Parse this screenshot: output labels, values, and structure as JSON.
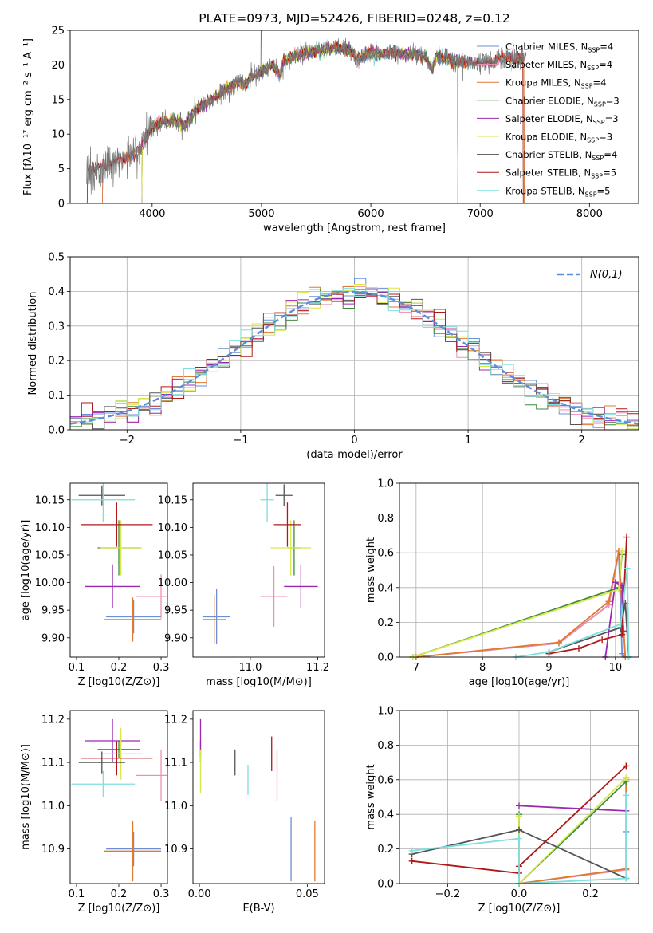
{
  "colors": {
    "Chabrier MILES": "#6a8fd8",
    "Salpeter MILES": "#ee8fb0",
    "Kroupa MILES": "#e07a30",
    "Chabrier ELODIE": "#3e8a3e",
    "Salpeter ELODIE": "#9c27b0",
    "Kroupa ELODIE": "#d6e84a",
    "Chabrier STELIB": "#555555",
    "Salpeter STELIB": "#b01818",
    "Kroupa STELIB": "#7fdede"
  },
  "chart_data": [
    {
      "id": "spectrum",
      "type": "line",
      "title": "PLATE=0973, MJD=52426, FIBERID=0248, z=0.12",
      "xlabel": "wavelength [Angstrom, rest frame]",
      "ylabel": "Flux [fλ10⁻¹⁷ erg cm⁻² s⁻¹ A⁻¹]",
      "xlim": [
        3250,
        8450
      ],
      "ylim": [
        0,
        25
      ],
      "xticks": [
        "4000",
        "5000",
        "6000",
        "7000",
        "8000"
      ],
      "yticks": [
        "0",
        "5",
        "10",
        "15",
        "20",
        "25"
      ],
      "legend_position": "right",
      "series": [
        {
          "name": "Chabrier MILES, N_SSP=4",
          "cut": [
            3540,
            7410
          ]
        },
        {
          "name": "Salpeter MILES, N_SSP=4",
          "cut": [
            3540,
            7410
          ]
        },
        {
          "name": "Kroupa MILES, N_SSP=4",
          "cut": [
            3540,
            7410
          ]
        },
        {
          "name": "Chabrier ELODIE, N_SSP=3",
          "cut": [
            3900,
            6800
          ]
        },
        {
          "name": "Salpeter ELODIE, N_SSP=3",
          "cut": [
            3900,
            6800
          ]
        },
        {
          "name": "Kroupa ELODIE, N_SSP=3",
          "cut": [
            3900,
            6800
          ]
        },
        {
          "name": "Chabrier STELIB, N_SSP=4",
          "cut": [
            3400,
            7400
          ]
        },
        {
          "name": "Salpeter STELIB, N_SSP=5",
          "cut": [
            3400,
            7400
          ]
        },
        {
          "name": "Kroupa STELIB, N_SSP=5",
          "cut": [
            3400,
            7400
          ]
        }
      ],
      "data_curve": {
        "x": [
          3400,
          3500,
          3600,
          3700,
          3800,
          3900,
          3950,
          4000,
          4100,
          4200,
          4300,
          4400,
          4500,
          4600,
          4700,
          4800,
          4860,
          4900,
          5000,
          5100,
          5170,
          5200,
          5300,
          5400,
          5500,
          5600,
          5700,
          5800,
          5890,
          6000,
          6100,
          6200,
          6300,
          6400,
          6500,
          6563,
          6600,
          6700,
          6800,
          6900,
          7000,
          7100,
          7200,
          7300,
          7400
        ],
        "y": [
          4.9,
          5.2,
          5.5,
          6.3,
          6.8,
          8.2,
          9.4,
          11.0,
          11.8,
          12.0,
          11.3,
          13.5,
          14.5,
          15.5,
          16.8,
          17.6,
          17.0,
          18.3,
          19.0,
          20.0,
          18.4,
          20.6,
          21.2,
          21.7,
          22.0,
          22.3,
          22.5,
          22.2,
          20.8,
          21.8,
          21.6,
          21.9,
          21.5,
          21.6,
          21.0,
          19.4,
          21.2,
          20.8,
          20.5,
          20.3,
          20.3,
          20.4,
          21.1,
          20.9,
          21.0
        ]
      }
    },
    {
      "id": "residuals",
      "type": "line",
      "xlabel": "(data-model)/error",
      "ylabel": "Normed distribution",
      "xlim": [
        -2.5,
        2.5
      ],
      "ylim": [
        0,
        0.5
      ],
      "xticks": [
        "−2",
        "−1",
        "0",
        "1",
        "2"
      ],
      "yticks": [
        "0.0",
        "0.1",
        "0.2",
        "0.3",
        "0.4",
        "0.5"
      ],
      "grid": true,
      "legend_position": "top-right",
      "reference": {
        "name": "N(0,1)",
        "type": "gaussian",
        "mean": 0,
        "sigma": 1
      },
      "histograms": {
        "bin_width": 0.1,
        "range": [
          -2.5,
          2.5
        ]
      }
    },
    {
      "id": "age_vs_Z",
      "type": "scatter",
      "xlabel": "Z [log10(Z/Z⊙)]",
      "ylabel": "age [log10(age/yr)]",
      "xlim": [
        0.085,
        0.315
      ],
      "ylim": [
        9.865,
        10.18
      ],
      "xticks": [
        "0.1",
        "0.2",
        "0.3"
      ],
      "yticks": [
        "9.90",
        "9.95",
        "10.00",
        "10.05",
        "10.10",
        "10.15"
      ],
      "points": [
        {
          "series": "Chabrier MILES",
          "x": 0.235,
          "y": 9.938,
          "xerr": 0.065,
          "yerr": 0.03
        },
        {
          "series": "Salpeter MILES",
          "x": 0.3,
          "y": 9.975,
          "xerr": 0.06,
          "yerr": 0.04
        },
        {
          "series": "Kroupa MILES",
          "x": 0.233,
          "y": 9.933,
          "xerr": 0.067,
          "yerr": 0.04
        },
        {
          "series": "Chabrier ELODIE",
          "x": 0.2,
          "y": 10.063,
          "xerr": 0.05,
          "yerr": 0.05
        },
        {
          "series": "Salpeter ELODIE",
          "x": 0.185,
          "y": 9.993,
          "xerr": 0.065,
          "yerr": 0.04
        },
        {
          "series": "Kroupa ELODIE",
          "x": 0.205,
          "y": 10.063,
          "xerr": 0.05,
          "yerr": 0.05
        },
        {
          "series": "Chabrier STELIB",
          "x": 0.16,
          "y": 10.158,
          "xerr": 0.055,
          "yerr": 0.018
        },
        {
          "series": "Salpeter STELIB",
          "x": 0.195,
          "y": 10.105,
          "xerr": 0.085,
          "yerr": 0.04
        },
        {
          "series": "Kroupa STELIB",
          "x": 0.163,
          "y": 10.15,
          "xerr": 0.075,
          "yerr": 0.04
        }
      ]
    },
    {
      "id": "age_vs_mass",
      "type": "scatter",
      "xlabel": "mass [log10(M/M⊙)]",
      "ylabel": "",
      "xlim": [
        10.83,
        11.22
      ],
      "ylim": [
        9.865,
        10.18
      ],
      "xticks": [
        "11.0",
        "11.2"
      ],
      "yticks": [
        "9.90",
        "9.95",
        "10.00",
        "10.05",
        "10.10",
        "10.15"
      ],
      "points": [
        {
          "series": "Chabrier MILES",
          "x": 10.9,
          "y": 9.938,
          "xerr": 0.04,
          "yerr": 0.05
        },
        {
          "series": "Salpeter MILES",
          "x": 11.07,
          "y": 9.975,
          "xerr": 0.04,
          "yerr": 0.055
        },
        {
          "series": "Kroupa MILES",
          "x": 10.893,
          "y": 9.933,
          "xerr": 0.035,
          "yerr": 0.045
        },
        {
          "series": "Chabrier ELODIE",
          "x": 11.13,
          "y": 10.063,
          "xerr": 0.02,
          "yerr": 0.05
        },
        {
          "series": "Salpeter ELODIE",
          "x": 11.15,
          "y": 9.993,
          "xerr": 0.05,
          "yerr": 0.04
        },
        {
          "series": "Kroupa ELODIE",
          "x": 11.12,
          "y": 10.063,
          "xerr": 0.06,
          "yerr": 0.05
        },
        {
          "series": "Chabrier STELIB",
          "x": 11.1,
          "y": 10.158,
          "xerr": 0.025,
          "yerr": 0.02
        },
        {
          "series": "Salpeter STELIB",
          "x": 11.11,
          "y": 10.105,
          "xerr": 0.04,
          "yerr": 0.04
        },
        {
          "series": "Kroupa STELIB",
          "x": 11.05,
          "y": 10.15,
          "xerr": 0.02,
          "yerr": 0.04
        }
      ]
    },
    {
      "id": "mass_weight_vs_age",
      "type": "line",
      "xlabel": "age [log10(age/yr)]",
      "ylabel": "mass weight",
      "xlim": [
        6.75,
        10.35
      ],
      "ylim": [
        0,
        1
      ],
      "xticks": [
        "7",
        "8",
        "9",
        "10"
      ],
      "yticks": [
        "0.0",
        "0.2",
        "0.4",
        "0.6",
        "0.8",
        "1.0"
      ],
      "grid": true,
      "series": [
        {
          "name": "Chabrier MILES",
          "x": [
            7.0,
            9.15,
            9.9,
            10.05,
            10.1,
            10.15
          ],
          "y": [
            0.0,
            0.08,
            0.3,
            0.6,
            0.02,
            0.0
          ]
        },
        {
          "name": "Salpeter MILES",
          "x": [
            7.0,
            9.15,
            9.9,
            10.05,
            10.15
          ],
          "y": [
            0.0,
            0.08,
            0.3,
            0.6,
            0.0
          ]
        },
        {
          "name": "Kroupa MILES",
          "x": [
            7.0,
            9.15,
            9.9,
            10.05,
            10.15
          ],
          "y": [
            0.0,
            0.085,
            0.32,
            0.61,
            0.0
          ]
        },
        {
          "name": "Chabrier ELODIE",
          "x": [
            6.95,
            10.05,
            10.1
          ],
          "y": [
            0.0,
            0.4,
            0.59
          ]
        },
        {
          "name": "Salpeter ELODIE",
          "x": [
            9.85,
            10.0,
            10.1,
            10.12
          ],
          "y": [
            0.0,
            0.43,
            0.41,
            0.15
          ]
        },
        {
          "name": "Kroupa ELODIE",
          "x": [
            6.95,
            10.05,
            10.1
          ],
          "y": [
            0.0,
            0.39,
            0.61
          ]
        },
        {
          "name": "Chabrier STELIB",
          "x": [
            9.0,
            10.08,
            10.15,
            10.2
          ],
          "y": [
            0.03,
            0.17,
            0.31,
            0.0
          ]
        },
        {
          "name": "Salpeter STELIB",
          "x": [
            9.0,
            9.45,
            9.8,
            10.1,
            10.17
          ],
          "y": [
            0.02,
            0.05,
            0.1,
            0.13,
            0.69
          ]
        },
        {
          "name": "Kroupa STELIB",
          "x": [
            8.5,
            9.0,
            10.08,
            10.18,
            10.2
          ],
          "y": [
            0.0,
            0.03,
            0.19,
            0.51,
            0.0
          ]
        }
      ]
    },
    {
      "id": "mass_vs_Z",
      "type": "scatter",
      "xlabel": "Z [log10(Z/Z⊙)]",
      "ylabel": "mass [log10(M/M⊙)]",
      "xlim": [
        0.085,
        0.315
      ],
      "ylim": [
        10.82,
        11.22
      ],
      "xticks": [
        "0.1",
        "0.2",
        "0.3"
      ],
      "yticks": [
        "10.9",
        "11.0",
        "11.1",
        "11.2"
      ],
      "points": [
        {
          "series": "Chabrier MILES",
          "x": 0.235,
          "y": 10.9,
          "xerr": 0.065,
          "yerr": 0.04
        },
        {
          "series": "Salpeter MILES",
          "x": 0.3,
          "y": 11.07,
          "xerr": 0.06,
          "yerr": 0.06
        },
        {
          "series": "Kroupa MILES",
          "x": 0.233,
          "y": 10.895,
          "xerr": 0.067,
          "yerr": 0.07
        },
        {
          "series": "Chabrier ELODIE",
          "x": 0.2,
          "y": 11.13,
          "xerr": 0.05,
          "yerr": 0.02
        },
        {
          "series": "Salpeter ELODIE",
          "x": 0.185,
          "y": 11.15,
          "xerr": 0.065,
          "yerr": 0.05
        },
        {
          "series": "Kroupa ELODIE",
          "x": 0.205,
          "y": 11.12,
          "xerr": 0.05,
          "yerr": 0.06
        },
        {
          "series": "Chabrier STELIB",
          "x": 0.16,
          "y": 11.1,
          "xerr": 0.055,
          "yerr": 0.025
        },
        {
          "series": "Salpeter STELIB",
          "x": 0.195,
          "y": 11.11,
          "xerr": 0.085,
          "yerr": 0.04
        },
        {
          "series": "Kroupa STELIB",
          "x": 0.163,
          "y": 11.05,
          "xerr": 0.075,
          "yerr": 0.03
        }
      ]
    },
    {
      "id": "mass_vs_ebv",
      "type": "scatter",
      "xlabel": "E(B-V)",
      "ylabel": "",
      "xlim": [
        -0.003,
        0.058
      ],
      "ylim": [
        10.82,
        11.22
      ],
      "xticks": [
        "0.00",
        "0.05"
      ],
      "yticks": [
        "10.9",
        "11.0",
        "11.1",
        "11.2"
      ],
      "points": [
        {
          "series": "Chabrier MILES",
          "x": 0.0425,
          "y": 10.9,
          "xerr": 0,
          "yerr": 0.075
        },
        {
          "series": "Salpeter MILES",
          "x": 0.036,
          "y": 11.07,
          "xerr": 0,
          "yerr": 0.06
        },
        {
          "series": "Kroupa MILES",
          "x": 0.0535,
          "y": 10.895,
          "xerr": 0,
          "yerr": 0.07
        },
        {
          "series": "Chabrier ELODIE",
          "x": 0.0005,
          "y": 11.13,
          "xerr": 0,
          "yerr": 0.02
        },
        {
          "series": "Salpeter ELODIE",
          "x": 0.0005,
          "y": 11.15,
          "xerr": 0,
          "yerr": 0.05
        },
        {
          "series": "Kroupa ELODIE",
          "x": 0.0005,
          "y": 11.08,
          "xerr": 0,
          "yerr": 0.05
        },
        {
          "series": "Chabrier STELIB",
          "x": 0.0165,
          "y": 11.1,
          "xerr": 0,
          "yerr": 0.03
        },
        {
          "series": "Salpeter STELIB",
          "x": 0.0335,
          "y": 11.12,
          "xerr": 0,
          "yerr": 0.04
        },
        {
          "series": "Kroupa STELIB",
          "x": 0.0225,
          "y": 11.06,
          "xerr": 0,
          "yerr": 0.035
        }
      ]
    },
    {
      "id": "mass_weight_vs_Z",
      "type": "line",
      "xlabel": "Z [log10(Z/Z⊙)]",
      "ylabel": "mass weight",
      "xlim": [
        -0.335,
        0.335
      ],
      "ylim": [
        0,
        1
      ],
      "xticks": [
        "−0.2",
        "0.0",
        "0.2"
      ],
      "yticks": [
        "0.0",
        "0.2",
        "0.4",
        "0.6",
        "0.8",
        "1.0"
      ],
      "grid": true,
      "series": [
        {
          "name": "Chabrier MILES",
          "x": [
            0.0,
            0.3,
            0.3,
            0.3
          ],
          "y": [
            0.0,
            0.08,
            0.3,
            0.6
          ]
        },
        {
          "name": "Salpeter MILES",
          "x": [
            0.0,
            0.3,
            0.3
          ],
          "y": [
            0.0,
            0.08,
            0.6
          ]
        },
        {
          "name": "Kroupa MILES",
          "x": [
            0.0,
            0.3,
            0.3
          ],
          "y": [
            0.0,
            0.085,
            0.61
          ]
        },
        {
          "name": "Chabrier ELODIE",
          "x": [
            0.0,
            0.0,
            0.3
          ],
          "y": [
            0.4,
            0.0,
            0.59
          ]
        },
        {
          "name": "Salpeter ELODIE",
          "x": [
            0.0,
            0.3
          ],
          "y": [
            0.45,
            0.42
          ]
        },
        {
          "name": "Kroupa ELODIE",
          "x": [
            0.0,
            0.0,
            0.3
          ],
          "y": [
            0.39,
            0.0,
            0.61
          ]
        },
        {
          "name": "Chabrier STELIB",
          "x": [
            -0.3,
            0.0,
            0.3
          ],
          "y": [
            0.17,
            0.31,
            0.03
          ]
        },
        {
          "name": "Salpeter STELIB",
          "x": [
            -0.3,
            0.0,
            0.0,
            0.3
          ],
          "y": [
            0.13,
            0.06,
            0.1,
            0.68
          ]
        },
        {
          "name": "Kroupa STELIB",
          "x": [
            -0.3,
            0.0,
            0.0,
            0.3,
            0.3
          ],
          "y": [
            0.19,
            0.26,
            0.0,
            0.03,
            0.51
          ]
        }
      ]
    }
  ]
}
